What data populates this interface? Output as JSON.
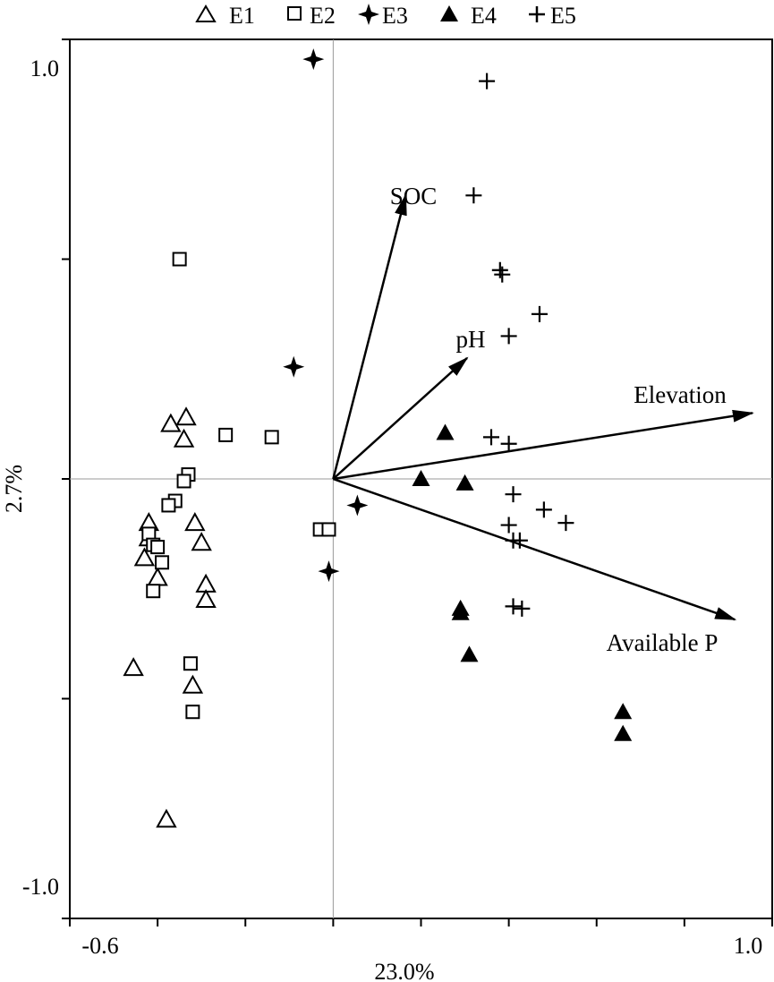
{
  "chart_data": {
    "type": "scatter",
    "subtype": "ordination-biplot",
    "xlabel": "23.0%",
    "ylabel": "2.7%",
    "xlim": [
      -0.6,
      1.0
    ],
    "ylim": [
      -1.0,
      1.0
    ],
    "x_tick_labels": [
      "-0.6",
      "1.0"
    ],
    "y_tick_labels": [
      "1.0",
      "-1.0"
    ],
    "x_ticks": [
      -0.6,
      -0.4,
      -0.2,
      0.0,
      0.2,
      0.4,
      0.6,
      0.8,
      1.0
    ],
    "y_ticks": [
      1.0,
      0.5,
      0.0,
      -0.5,
      -1.0
    ],
    "reference_lines": {
      "x": 0.0,
      "y": 0.0,
      "color": "#999999"
    },
    "legend_position": "top-center",
    "series": [
      {
        "name": "E1",
        "marker": "open-triangle",
        "points": [
          [
            -0.37,
            0.125
          ],
          [
            -0.335,
            0.14
          ],
          [
            -0.34,
            0.09
          ],
          [
            -0.42,
            -0.1
          ],
          [
            -0.43,
            -0.18
          ],
          [
            -0.42,
            -0.135
          ],
          [
            -0.4,
            -0.225
          ],
          [
            -0.315,
            -0.1
          ],
          [
            -0.3,
            -0.145
          ],
          [
            -0.29,
            -0.24
          ],
          [
            -0.29,
            -0.275
          ],
          [
            -0.455,
            -0.43
          ],
          [
            -0.32,
            -0.47
          ],
          [
            -0.38,
            -0.775
          ]
        ]
      },
      {
        "name": "E2",
        "marker": "open-square",
        "points": [
          [
            -0.35,
            0.5
          ],
          [
            -0.245,
            0.1
          ],
          [
            -0.14,
            0.095
          ],
          [
            -0.33,
            0.01
          ],
          [
            -0.34,
            -0.005
          ],
          [
            -0.36,
            -0.05
          ],
          [
            -0.375,
            -0.06
          ],
          [
            -0.42,
            -0.125
          ],
          [
            -0.41,
            -0.15
          ],
          [
            -0.4,
            -0.155
          ],
          [
            -0.39,
            -0.19
          ],
          [
            -0.41,
            -0.255
          ],
          [
            -0.325,
            -0.42
          ],
          [
            -0.32,
            -0.53
          ],
          [
            -0.03,
            -0.115
          ],
          [
            -0.01,
            -0.115
          ]
        ]
      },
      {
        "name": "E3",
        "marker": "filled-star",
        "points": [
          [
            -0.045,
            0.955
          ],
          [
            -0.09,
            0.255
          ],
          [
            0.055,
            -0.06
          ],
          [
            -0.01,
            -0.21
          ]
        ]
      },
      {
        "name": "E4",
        "marker": "filled-triangle",
        "points": [
          [
            0.255,
            0.105
          ],
          [
            0.2,
            0.0
          ],
          [
            0.3,
            -0.01
          ],
          [
            0.29,
            -0.295
          ],
          [
            0.29,
            -0.305
          ],
          [
            0.31,
            -0.4
          ],
          [
            0.66,
            -0.53
          ],
          [
            0.66,
            -0.58
          ]
        ]
      },
      {
        "name": "E5",
        "marker": "plus",
        "points": [
          [
            0.35,
            0.905
          ],
          [
            0.32,
            0.645
          ],
          [
            0.38,
            0.475
          ],
          [
            0.385,
            0.465
          ],
          [
            0.47,
            0.375
          ],
          [
            0.4,
            0.325
          ],
          [
            0.36,
            0.095
          ],
          [
            0.4,
            0.08
          ],
          [
            0.41,
            -0.035
          ],
          [
            0.48,
            -0.07
          ],
          [
            0.53,
            -0.1
          ],
          [
            0.4,
            -0.105
          ],
          [
            0.41,
            -0.14
          ],
          [
            0.425,
            -0.14
          ],
          [
            0.41,
            -0.29
          ],
          [
            0.43,
            -0.295
          ]
        ]
      }
    ],
    "vectors": [
      {
        "name": "SOC",
        "x": 0.165,
        "y": 0.645
      },
      {
        "name": "pH",
        "x": 0.305,
        "y": 0.275
      },
      {
        "name": "Elevation",
        "x": 0.955,
        "y": 0.15
      },
      {
        "name": "Available P",
        "x": 0.915,
        "y": -0.32
      }
    ]
  }
}
